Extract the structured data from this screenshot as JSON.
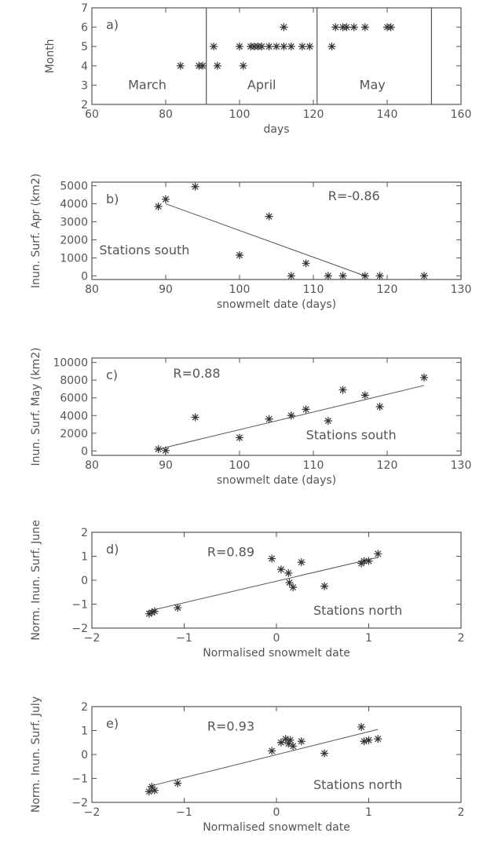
{
  "chart_data": [
    {
      "type": "scatter",
      "panel": "a)",
      "xlabel": "days",
      "ylabel": "Month",
      "xlim": [
        60,
        160
      ],
      "ylim": [
        2,
        7
      ],
      "xticks": [
        60,
        80,
        100,
        120,
        140,
        160
      ],
      "yticks": [
        2,
        3,
        4,
        5,
        6,
        7
      ],
      "vlines": [
        91,
        121,
        152
      ],
      "text_labels": [
        {
          "text": "March",
          "x": 75,
          "y": 2.8
        },
        {
          "text": "April",
          "x": 106,
          "y": 2.8
        },
        {
          "text": "May",
          "x": 136,
          "y": 2.8
        }
      ],
      "x": [
        84,
        89,
        90,
        93,
        94,
        100,
        101,
        103,
        104,
        105,
        106,
        108,
        110,
        112,
        112,
        114,
        117,
        119,
        125,
        126,
        128,
        129,
        131,
        134,
        140,
        141
      ],
      "y": [
        4,
        4,
        4,
        5,
        4,
        5,
        4,
        5,
        5,
        5,
        5,
        5,
        5,
        6,
        5,
        5,
        5,
        5,
        5,
        6,
        6,
        6,
        6,
        6,
        6,
        6
      ]
    },
    {
      "type": "scatter",
      "panel": "b)",
      "xlabel": "snowmelt date (days)",
      "ylabel": "Inun. Surf. Apr (km2)",
      "xlim": [
        80,
        130
      ],
      "ylim": [
        -200,
        5200
      ],
      "xticks": [
        80,
        90,
        100,
        110,
        120,
        130
      ],
      "yticks": [
        0,
        1000,
        2000,
        3000,
        4000,
        5000
      ],
      "annotation": "R=-0.86",
      "annotation_pos": [
        112,
        4200
      ],
      "group_label": "Stations south",
      "group_label_pos": [
        81,
        1200
      ],
      "fit_line": [
        [
          90,
          4000
        ],
        [
          117,
          0
        ]
      ],
      "x": [
        89,
        90,
        94,
        100,
        104,
        107,
        109,
        112,
        114,
        117,
        119,
        125
      ],
      "y": [
        3850,
        4250,
        4950,
        1150,
        3300,
        0,
        700,
        0,
        0,
        0,
        0,
        0
      ]
    },
    {
      "type": "scatter",
      "panel": "c)",
      "xlabel": "snowmelt date (days)",
      "ylabel": "Inun. Surf. May (km2)",
      "xlim": [
        80,
        130
      ],
      "ylim": [
        -500,
        10500
      ],
      "xticks": [
        80,
        90,
        100,
        110,
        120,
        130
      ],
      "yticks": [
        0,
        2000,
        4000,
        6000,
        8000,
        10000
      ],
      "annotation": "R=0.88",
      "annotation_pos": [
        91,
        8300
      ],
      "group_label": "Stations south",
      "group_label_pos": [
        109,
        1300
      ],
      "fit_line": [
        [
          89,
          200
        ],
        [
          125,
          7400
        ]
      ],
      "x": [
        89,
        90,
        94,
        100,
        104,
        107,
        109,
        112,
        114,
        117,
        119,
        125
      ],
      "y": [
        200,
        50,
        3800,
        1500,
        3600,
        4000,
        4700,
        3400,
        6900,
        6300,
        5000,
        8300
      ]
    },
    {
      "type": "scatter",
      "panel": "d)",
      "xlabel": "Normalised snowmelt date",
      "ylabel": "Norm. Inun. Surf. June",
      "xlim": [
        -2,
        2
      ],
      "ylim": [
        -2,
        2
      ],
      "xticks": [
        -2,
        -1,
        0,
        1,
        2
      ],
      "yticks": [
        -2,
        -1,
        0,
        1,
        2
      ],
      "annotation": "R=0.89",
      "annotation_pos": [
        -0.75,
        1.0
      ],
      "group_label": "Stations north",
      "group_label_pos": [
        0.4,
        -1.45
      ],
      "fit_line": [
        [
          -1.4,
          -1.3
        ],
        [
          1.1,
          0.95
        ]
      ],
      "x": [
        -1.38,
        -1.35,
        -1.32,
        -1.07,
        -0.05,
        0.05,
        0.13,
        0.14,
        0.18,
        0.27,
        0.52,
        0.92,
        0.95,
        1.0,
        1.1
      ],
      "y": [
        -1.4,
        -1.35,
        -1.3,
        -1.15,
        0.9,
        0.45,
        0.3,
        -0.1,
        -0.3,
        0.75,
        -0.25,
        0.7,
        0.8,
        0.8,
        1.1
      ]
    },
    {
      "type": "scatter",
      "panel": "e)",
      "xlabel": "Normalised snowmelt date",
      "ylabel": "Norm. Inun. Surf. July",
      "xlim": [
        -2,
        2
      ],
      "ylim": [
        -2,
        2
      ],
      "xticks": [
        -2,
        -1,
        0,
        1,
        2
      ],
      "yticks": [
        -2,
        -1,
        0,
        1,
        2
      ],
      "annotation": "R=0.93",
      "annotation_pos": [
        -0.75,
        1.0
      ],
      "group_label": "Stations north",
      "group_label_pos": [
        0.4,
        -1.45
      ],
      "fit_line": [
        [
          -1.4,
          -1.35
        ],
        [
          1.1,
          1.05
        ]
      ],
      "x": [
        -1.38,
        -1.35,
        -1.32,
        -1.07,
        -0.05,
        0.05,
        0.1,
        0.13,
        0.15,
        0.18,
        0.27,
        0.52,
        0.92,
        0.95,
        1.0,
        1.1
      ],
      "y": [
        -1.55,
        -1.35,
        -1.5,
        -1.2,
        0.15,
        0.5,
        0.65,
        0.45,
        0.6,
        0.35,
        0.55,
        0.05,
        1.15,
        0.55,
        0.6,
        0.65
      ]
    }
  ]
}
